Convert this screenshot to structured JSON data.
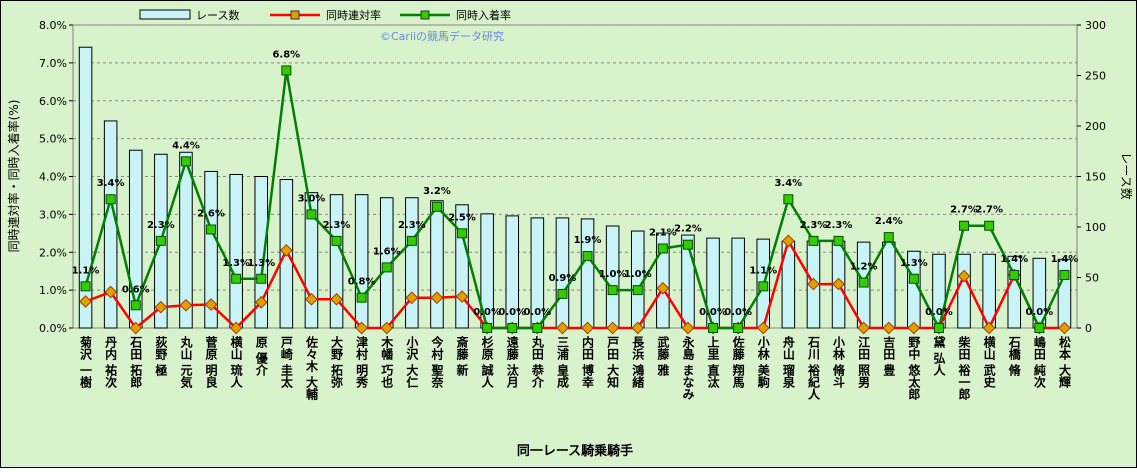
{
  "chart_data": {
    "type": "combo",
    "x_label": "同一レース騎乗騎手",
    "y_label": "同時連対率・同時入着率(%)",
    "y2_label": "レース数",
    "annotation": "©Cariiの競馬データ研究",
    "categories": [
      "菊沢 一樹",
      "丹内 祐次",
      "石田 拓郎",
      "荻野 極",
      "丸山 元気",
      "菅原 明良",
      "横山 琉人",
      "原 優介",
      "戸崎 圭太",
      "佐々木 大輔",
      "大野 拓弥",
      "津村 明秀",
      "木幡 巧也",
      "小沢 大仁",
      "今村 聖奈",
      "斎藤 新",
      "杉原 誠人",
      "遠藤 汰月",
      "丸田 恭介",
      "三浦 皇成",
      "内田 博幸",
      "戸田 大知",
      "長浜 鴻緒",
      "武藤 雅",
      "永島 まなみ",
      "上里 直汰",
      "佐藤 翔馬",
      "小林 美駒",
      "舟山 瑠泉",
      "石川 裕紀人",
      "小林 脩斗",
      "江田 照男",
      "吉田 豊",
      "野中 悠太郎",
      "黛 弘人",
      "柴田 裕一郎",
      "横山 武史",
      "石橋 脩",
      "嶋田 純次",
      "松本 大輝"
    ],
    "ylim": [
      0,
      8
    ],
    "yticks": [
      {
        "value": 0,
        "label": "0.0%"
      },
      {
        "value": 1,
        "label": "1.0%"
      },
      {
        "value": 2,
        "label": "2.0%"
      },
      {
        "value": 3,
        "label": "3.0%"
      },
      {
        "value": 4,
        "label": "4.0%"
      },
      {
        "value": 5,
        "label": "5.0%"
      },
      {
        "value": 6,
        "label": "6.0%"
      },
      {
        "value": 7,
        "label": "7.0%"
      },
      {
        "value": 8,
        "label": "8.0%"
      }
    ],
    "y2lim": [
      0,
      300
    ],
    "y2ticks": [
      0,
      50,
      100,
      150,
      200,
      250,
      300
    ],
    "grid": true,
    "series": [
      {
        "name": "レース数",
        "kind": "bar",
        "axis": "y2",
        "color": "#c8f4f8",
        "values": [
          278,
          205,
          176,
          172,
          174,
          155,
          152,
          150,
          147,
          134,
          132,
          132,
          129,
          129,
          126,
          122,
          113,
          111,
          109,
          109,
          108,
          101,
          96,
          94,
          92,
          89,
          89,
          88,
          86,
          86,
          86,
          85,
          85,
          76,
          73,
          73,
          73,
          71,
          69,
          68
        ]
      },
      {
        "name": "同時連対率",
        "kind": "line",
        "color": "#ff0000",
        "marker_color": "#e0a000",
        "values": [
          0.7,
          0.95,
          0,
          0.55,
          0.6,
          0.62,
          0,
          0.68,
          2.05,
          0.76,
          0.76,
          0,
          0,
          0.8,
          0.8,
          0.83,
          0,
          0,
          0,
          0,
          0,
          0,
          0,
          1.05,
          0,
          0,
          0,
          0,
          2.3,
          1.16,
          1.16,
          0,
          0,
          0,
          0,
          1.37,
          0,
          1.4,
          0,
          0
        ]
      },
      {
        "name": "同時入着率",
        "kind": "line",
        "color": "#008000",
        "marker_color": "#33cc00",
        "values": [
          1.1,
          3.4,
          0.6,
          2.3,
          4.4,
          2.6,
          1.3,
          1.3,
          6.8,
          3.0,
          2.3,
          0.8,
          1.6,
          2.3,
          3.2,
          2.5,
          0.0,
          0.0,
          0.0,
          0.9,
          1.9,
          1.0,
          1.0,
          2.1,
          2.2,
          0.0,
          0.0,
          1.1,
          3.4,
          2.3,
          2.3,
          1.2,
          2.4,
          1.3,
          0.0,
          2.7,
          2.7,
          1.4,
          0.0,
          1.4
        ],
        "value_labels": [
          "1.1%",
          "3.4%",
          "0.6%",
          "2.3%",
          "4.4%",
          "2.6%",
          "1.3%",
          "1.3%",
          "6.8%",
          "3.0%",
          "2.3%",
          "0.8%",
          "1.6%",
          "2.3%",
          "3.2%",
          "2.5%",
          "0.0%",
          "0.0%",
          "0.0%",
          "0.9%",
          "1.9%",
          "1.0%",
          "1.0%",
          "2.1%",
          "2.2%",
          "0.0%",
          "0.0%",
          "1.1%",
          "3.4%",
          "2.3%",
          "2.3%",
          "1.2%",
          "2.4%",
          "1.3%",
          "0.0%",
          "2.7%",
          "2.7%",
          "1.4%",
          "0.0%",
          "1.4%"
        ]
      }
    ]
  }
}
